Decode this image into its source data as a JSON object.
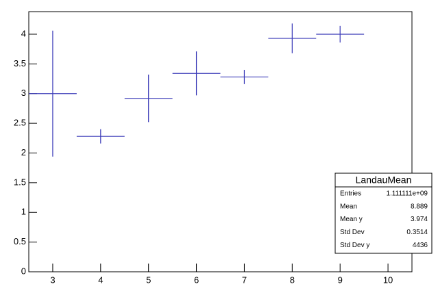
{
  "chart_data": {
    "type": "errorbar",
    "x": [
      3,
      4,
      5,
      6,
      7,
      8,
      9
    ],
    "xerrors": [
      0.5,
      0.5,
      0.5,
      0.5,
      0.5,
      0.5,
      0.5
    ],
    "values": [
      3.0,
      2.28,
      2.92,
      3.34,
      3.28,
      3.93,
      4.0
    ],
    "errors": [
      1.06,
      0.12,
      0.4,
      0.37,
      0.12,
      0.25,
      0.14
    ],
    "color": "#3b3bb8",
    "xlim": [
      2.5,
      10.5
    ],
    "xticks": [
      3,
      4,
      5,
      6,
      7,
      8,
      9,
      10
    ],
    "ylim": [
      0,
      4.38
    ],
    "yticks": [
      0,
      0.5,
      1,
      1.5,
      2,
      2.5,
      3,
      3.5,
      4
    ],
    "stats": {
      "title": "LandauMean",
      "rows": [
        {
          "label": "Entries",
          "value": "1.111111e+09"
        },
        {
          "label": "Mean",
          "value": "8.889"
        },
        {
          "label": "Mean y",
          "value": "3.974"
        },
        {
          "label": "Std Dev",
          "value": "0.3514"
        },
        {
          "label": "Std Dev y",
          "value": "4436"
        }
      ]
    }
  }
}
